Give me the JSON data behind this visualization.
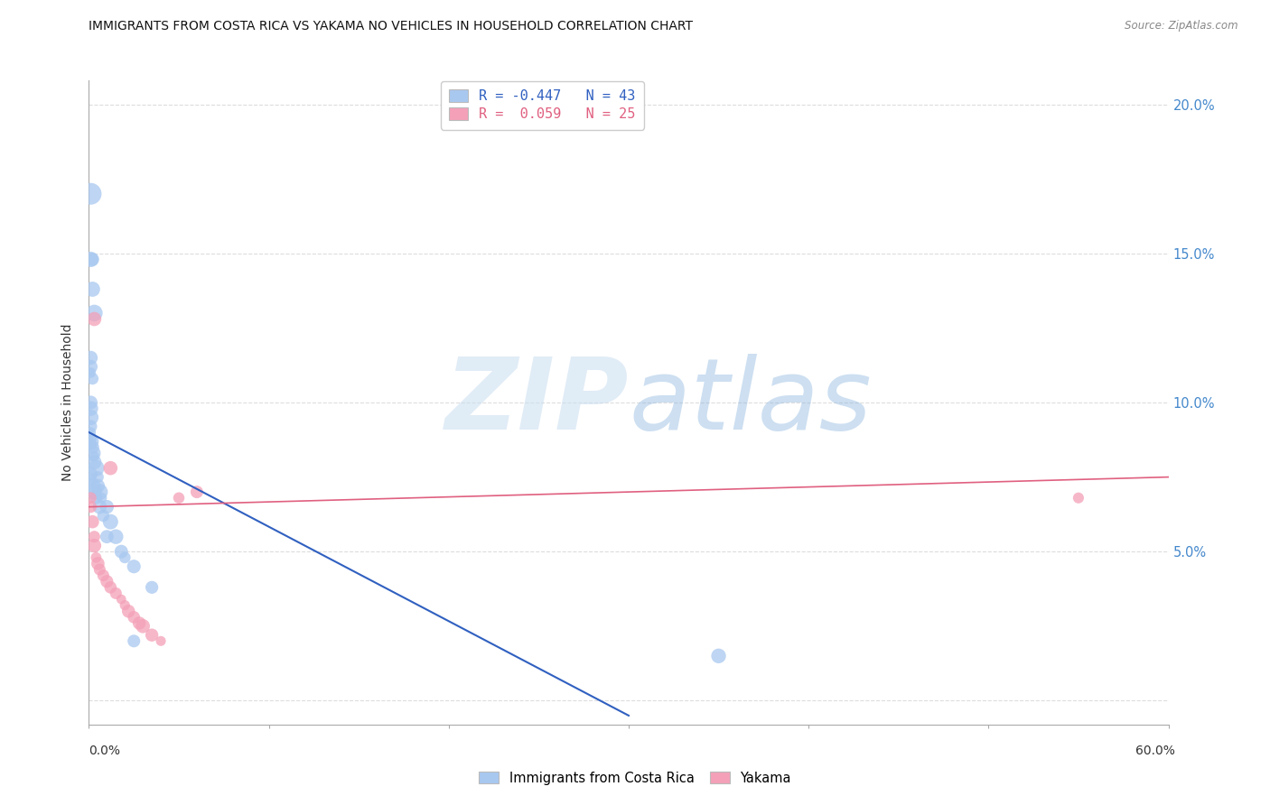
{
  "title": "IMMIGRANTS FROM COSTA RICA VS YAKAMA NO VEHICLES IN HOUSEHOLD CORRELATION CHART",
  "source": "Source: ZipAtlas.com",
  "ylabel": "No Vehicles in Household",
  "ylabel_right_ticks": [
    0.0,
    0.05,
    0.1,
    0.15,
    0.2
  ],
  "ylabel_right_labels": [
    "",
    "5.0%",
    "10.0%",
    "15.0%",
    "20.0%"
  ],
  "xmin": 0.0,
  "xmax": 0.6,
  "ymin": -0.008,
  "ymax": 0.208,
  "blue_R": -0.447,
  "blue_N": 43,
  "pink_R": 0.059,
  "pink_N": 25,
  "blue_color": "#a8c8f0",
  "blue_line_color": "#3060c0",
  "pink_color": "#f4a0b8",
  "pink_line_color": "#e06080",
  "blue_scatter_x": [
    0.001,
    0.001,
    0.002,
    0.002,
    0.003,
    0.001,
    0.001,
    0.001,
    0.002,
    0.001,
    0.001,
    0.001,
    0.001,
    0.001,
    0.001,
    0.001,
    0.001,
    0.002,
    0.002,
    0.003,
    0.003,
    0.004,
    0.005,
    0.005,
    0.006,
    0.007,
    0.01,
    0.012,
    0.015,
    0.018,
    0.02,
    0.025,
    0.035,
    0.001,
    0.001,
    0.002,
    0.003,
    0.004,
    0.006,
    0.008,
    0.01,
    0.025,
    0.35
  ],
  "blue_scatter_y": [
    0.17,
    0.148,
    0.148,
    0.138,
    0.13,
    0.115,
    0.112,
    0.11,
    0.108,
    0.1,
    0.098,
    0.095,
    0.092,
    0.09,
    0.088,
    0.087,
    0.086,
    0.085,
    0.083,
    0.082,
    0.08,
    0.078,
    0.075,
    0.072,
    0.07,
    0.068,
    0.065,
    0.06,
    0.055,
    0.05,
    0.048,
    0.045,
    0.038,
    0.076,
    0.074,
    0.072,
    0.07,
    0.068,
    0.065,
    0.062,
    0.055,
    0.02,
    0.015
  ],
  "pink_scatter_x": [
    0.001,
    0.001,
    0.002,
    0.003,
    0.003,
    0.004,
    0.005,
    0.006,
    0.008,
    0.01,
    0.012,
    0.015,
    0.018,
    0.02,
    0.022,
    0.025,
    0.028,
    0.03,
    0.035,
    0.04,
    0.05,
    0.06,
    0.55,
    0.003,
    0.012
  ],
  "pink_scatter_y": [
    0.068,
    0.065,
    0.06,
    0.055,
    0.052,
    0.048,
    0.046,
    0.044,
    0.042,
    0.04,
    0.038,
    0.036,
    0.034,
    0.032,
    0.03,
    0.028,
    0.026,
    0.025,
    0.022,
    0.02,
    0.068,
    0.07,
    0.068,
    0.128,
    0.078
  ],
  "blue_line_x0": 0.0,
  "blue_line_y0": 0.09,
  "blue_line_x1": 0.3,
  "blue_line_y1": -0.005,
  "pink_line_x0": 0.0,
  "pink_line_y0": 0.065,
  "pink_line_x1": 0.6,
  "pink_line_y1": 0.075,
  "watermark_zip": "ZIP",
  "watermark_atlas": "atlas",
  "watermark_color_zip": "#c0d8f0",
  "watermark_color_atlas": "#90b8e0",
  "legend_blue_label": "Immigrants from Costa Rica",
  "legend_pink_label": "Yakama",
  "background_color": "#ffffff",
  "grid_color": "#dddddd"
}
